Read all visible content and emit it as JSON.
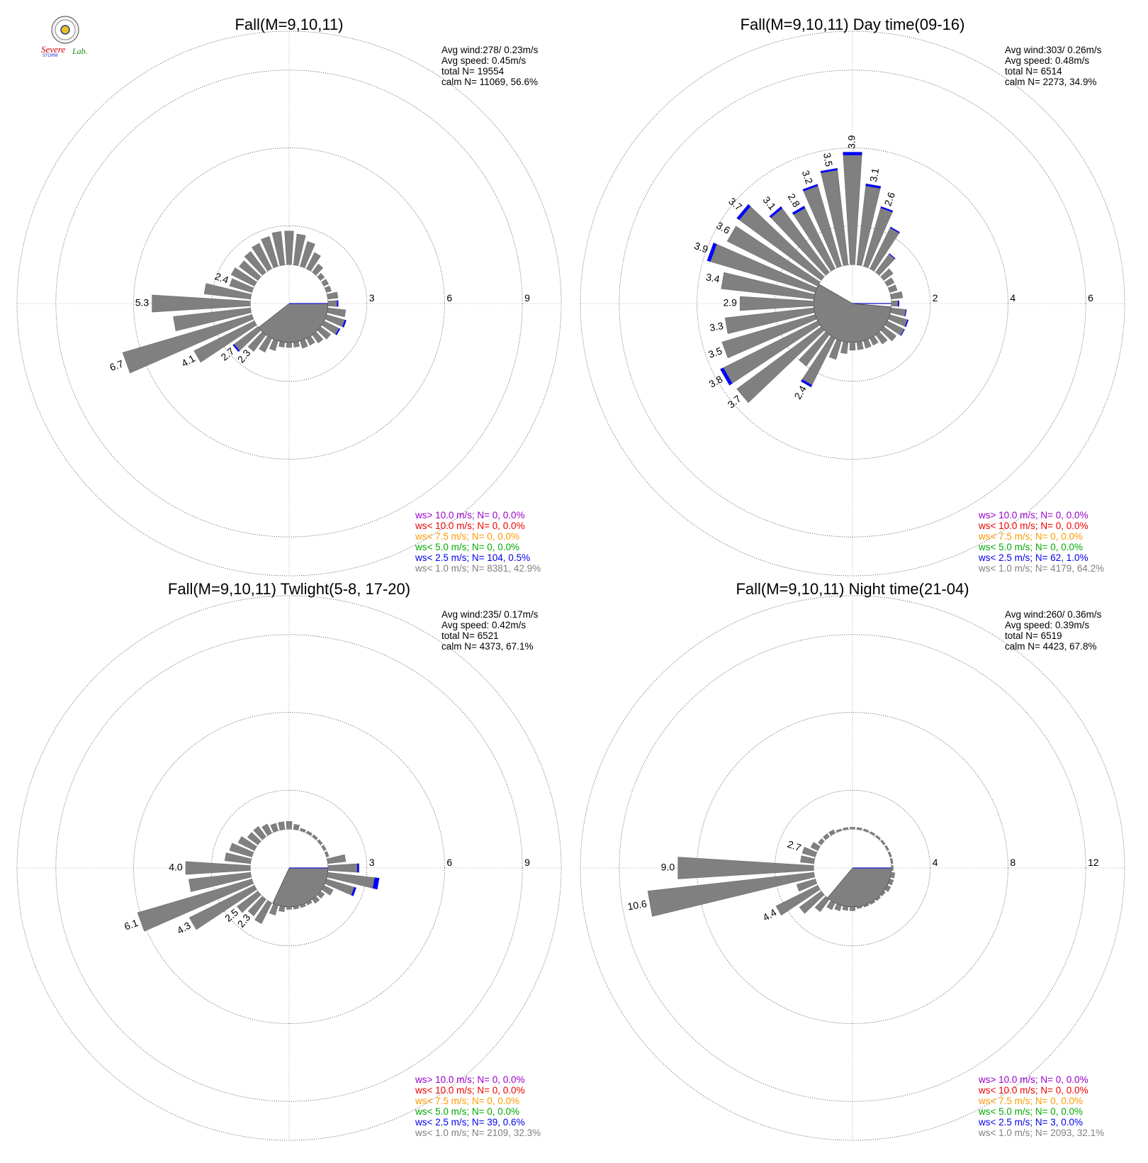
{
  "logo": {
    "text": "SevereStorm Lab.",
    "colors": {
      "severe": "#d40000",
      "storm": "#1a33cc",
      "lab": "#1a8a1a"
    }
  },
  "colors": {
    "bar": "#808080",
    "blue_tip": "#0000ff"
  },
  "chart_data": [
    {
      "type": "polar-bar",
      "title": "Fall(M=9,10,11)",
      "info": [
        "Avg wind:278/ 0.23m/s",
        "Avg speed: 0.45m/s",
        "total N=       19554",
        "calm N=  11069,  56.6%"
      ],
      "ring_labels": [
        "3",
        "6",
        "9"
      ],
      "rmax": 10.5,
      "calm_r": 1.5,
      "calm_sector": [
        90,
        232
      ],
      "bar_labels": [
        {
          "dir": 270,
          "text": "5.3"
        },
        {
          "dir": 250,
          "text": "6.7"
        },
        {
          "dir": 240,
          "text": "4.1"
        },
        {
          "dir": 230,
          "text": "2.7"
        },
        {
          "dir": 220,
          "text": "2.3"
        },
        {
          "dir": 290,
          "text": "2.4"
        }
      ],
      "bars": [
        {
          "dir": 0,
          "r": 2.8
        },
        {
          "dir": 10,
          "r": 2.7
        },
        {
          "dir": 20,
          "r": 2.5
        },
        {
          "dir": 30,
          "r": 2.2
        },
        {
          "dir": 40,
          "r": 1.9
        },
        {
          "dir": 50,
          "r": 1.7
        },
        {
          "dir": 60,
          "r": 1.7
        },
        {
          "dir": 70,
          "r": 1.7
        },
        {
          "dir": 80,
          "r": 1.9
        },
        {
          "dir": 90,
          "r": 1.9,
          "blue": 0.05
        },
        {
          "dir": 100,
          "r": 2.2
        },
        {
          "dir": 110,
          "r": 2.3,
          "blue": 0.06
        },
        {
          "dir": 120,
          "r": 2.2,
          "blue": 0.05
        },
        {
          "dir": 130,
          "r": 2.0
        },
        {
          "dir": 140,
          "r": 1.9
        },
        {
          "dir": 150,
          "r": 1.8
        },
        {
          "dir": 160,
          "r": 1.8
        },
        {
          "dir": 170,
          "r": 1.7
        },
        {
          "dir": 180,
          "r": 1.7
        },
        {
          "dir": 190,
          "r": 1.7
        },
        {
          "dir": 200,
          "r": 1.9
        },
        {
          "dir": 210,
          "r": 2.1
        },
        {
          "dir": 220,
          "r": 2.3
        },
        {
          "dir": 230,
          "r": 2.7,
          "blue": 0.06
        },
        {
          "dir": 240,
          "r": 4.1
        },
        {
          "dir": 250,
          "r": 6.7
        },
        {
          "dir": 260,
          "r": 4.5
        },
        {
          "dir": 270,
          "r": 5.3
        },
        {
          "dir": 280,
          "r": 3.3
        },
        {
          "dir": 290,
          "r": 2.4
        },
        {
          "dir": 300,
          "r": 2.5
        },
        {
          "dir": 310,
          "r": 2.4
        },
        {
          "dir": 320,
          "r": 2.5
        },
        {
          "dir": 330,
          "r": 2.6
        },
        {
          "dir": 340,
          "r": 2.7
        },
        {
          "dir": 350,
          "r": 2.8
        }
      ],
      "legend": [
        {
          "text": "ws> 10.0 m/s; N=      0,  0.0%",
          "color": "#9900cc"
        },
        {
          "text": "ws< 10.0 m/s; N=      0,  0.0%",
          "color": "#ee0000"
        },
        {
          "text": "ws<  7.5 m/s; N=      0,  0.0%",
          "color": "#ff9900"
        },
        {
          "text": "ws<  5.0 m/s; N=      0,  0.0%",
          "color": "#00aa00"
        },
        {
          "text": "ws<  2.5 m/s; N=   104,  0.5%",
          "color": "#0000ee"
        },
        {
          "text": "ws<  1.0 m/s; N=  8381, 42.9%",
          "color": "#808080"
        }
      ]
    },
    {
      "type": "polar-bar",
      "title": "Fall(M=9,10,11) Day time(09-16)",
      "info": [
        "Avg wind:303/ 0.26m/s",
        "Avg speed: 0.48m/s",
        "total N=        6514",
        "calm N=   2273,  34.9%"
      ],
      "ring_labels": [
        "2",
        "4",
        "6"
      ],
      "rmax": 7.0,
      "calm_r": 1.0,
      "calm_sector": [
        95,
        300
      ],
      "bar_labels": [
        {
          "dir": 0,
          "text": "3.9"
        },
        {
          "dir": 10,
          "text": "3.1"
        },
        {
          "dir": 20,
          "text": "2.6"
        },
        {
          "dir": 350,
          "text": "3.5"
        },
        {
          "dir": 340,
          "text": "3.2"
        },
        {
          "dir": 330,
          "text": "2.8"
        },
        {
          "dir": 320,
          "text": "3.1"
        },
        {
          "dir": 310,
          "text": "3.7"
        },
        {
          "dir": 300,
          "text": "3.6"
        },
        {
          "dir": 290,
          "text": "3.9"
        },
        {
          "dir": 280,
          "text": "3.4"
        },
        {
          "dir": 270,
          "text": "2.9"
        },
        {
          "dir": 260,
          "text": "3.3"
        },
        {
          "dir": 250,
          "text": "3.5"
        },
        {
          "dir": 240,
          "text": "3.8"
        },
        {
          "dir": 230,
          "text": "3.7"
        },
        {
          "dir": 210,
          "text": "2.4"
        }
      ],
      "bars": [
        {
          "dir": 0,
          "r": 3.9,
          "blue": 0.08
        },
        {
          "dir": 10,
          "r": 3.1,
          "blue": 0.06
        },
        {
          "dir": 20,
          "r": 2.6,
          "blue": 0.04
        },
        {
          "dir": 30,
          "r": 2.2,
          "blue": 0.03
        },
        {
          "dir": 40,
          "r": 1.6,
          "blue": 0.02
        },
        {
          "dir": 50,
          "r": 1.3
        },
        {
          "dir": 60,
          "r": 1.2
        },
        {
          "dir": 70,
          "r": 1.2
        },
        {
          "dir": 80,
          "r": 1.3
        },
        {
          "dir": 90,
          "r": 1.2,
          "blue": 0.03
        },
        {
          "dir": 100,
          "r": 1.4,
          "blue": 0.02
        },
        {
          "dir": 110,
          "r": 1.5,
          "blue": 0.03
        },
        {
          "dir": 120,
          "r": 1.5,
          "blue": 0.02
        },
        {
          "dir": 130,
          "r": 1.4
        },
        {
          "dir": 140,
          "r": 1.3
        },
        {
          "dir": 150,
          "r": 1.2
        },
        {
          "dir": 160,
          "r": 1.2
        },
        {
          "dir": 170,
          "r": 1.2
        },
        {
          "dir": 180,
          "r": 1.2
        },
        {
          "dir": 190,
          "r": 1.3
        },
        {
          "dir": 200,
          "r": 1.5
        },
        {
          "dir": 210,
          "r": 2.4,
          "blue": 0.06
        },
        {
          "dir": 220,
          "r": 2.0
        },
        {
          "dir": 230,
          "r": 3.7
        },
        {
          "dir": 240,
          "r": 3.8,
          "blue": 0.09
        },
        {
          "dir": 250,
          "r": 3.5
        },
        {
          "dir": 260,
          "r": 3.3
        },
        {
          "dir": 270,
          "r": 2.9
        },
        {
          "dir": 280,
          "r": 3.4
        },
        {
          "dir": 290,
          "r": 3.9,
          "blue": 0.09
        },
        {
          "dir": 300,
          "r": 3.6
        },
        {
          "dir": 310,
          "r": 3.7,
          "blue": 0.08
        },
        {
          "dir": 320,
          "r": 3.1,
          "blue": 0.06
        },
        {
          "dir": 330,
          "r": 2.8,
          "blue": 0.06
        },
        {
          "dir": 340,
          "r": 3.2,
          "blue": 0.05
        },
        {
          "dir": 350,
          "r": 3.5,
          "blue": 0.05
        }
      ],
      "legend": [
        {
          "text": "ws> 10.0 m/s; N=      0,  0.0%",
          "color": "#9900cc"
        },
        {
          "text": "ws< 10.0 m/s; N=      0,  0.0%",
          "color": "#ee0000"
        },
        {
          "text": "ws<  7.5 m/s; N=      0,  0.0%",
          "color": "#ff9900"
        },
        {
          "text": "ws<  5.0 m/s; N=      0,  0.0%",
          "color": "#00aa00"
        },
        {
          "text": "ws<  2.5 m/s; N=     62,  1.0%",
          "color": "#0000ee"
        },
        {
          "text": "ws<  1.0 m/s; N=  4179, 64.2%",
          "color": "#808080"
        }
      ]
    },
    {
      "type": "polar-bar",
      "title": "Fall(M=9,10,11) Twlight(5-8, 17-20)",
      "info": [
        "Avg wind:235/ 0.17m/s",
        "Avg speed: 0.42m/s",
        "total N=        6521",
        "calm N=   4373,  67.1%"
      ],
      "ring_labels": [
        "3",
        "6",
        "9"
      ],
      "rmax": 10.5,
      "calm_r": 1.5,
      "calm_sector": [
        90,
        205
      ],
      "bar_labels": [
        {
          "dir": 270,
          "text": "4.0"
        },
        {
          "dir": 250,
          "text": "6.1"
        },
        {
          "dir": 240,
          "text": "4.3"
        },
        {
          "dir": 230,
          "text": "2.5"
        },
        {
          "dir": 220,
          "text": "2.3"
        }
      ],
      "bars": [
        {
          "dir": 0,
          "r": 1.8
        },
        {
          "dir": 10,
          "r": 1.7
        },
        {
          "dir": 20,
          "r": 1.6
        },
        {
          "dir": 30,
          "r": 1.6
        },
        {
          "dir": 40,
          "r": 1.6
        },
        {
          "dir": 50,
          "r": 1.6
        },
        {
          "dir": 60,
          "r": 1.6
        },
        {
          "dir": 70,
          "r": 1.6
        },
        {
          "dir": 80,
          "r": 2.2
        },
        {
          "dir": 90,
          "r": 2.7,
          "blue": 0.07
        },
        {
          "dir": 100,
          "r": 3.5,
          "blue": 0.18
        },
        {
          "dir": 110,
          "r": 2.7,
          "blue": 0.08
        },
        {
          "dir": 120,
          "r": 1.9
        },
        {
          "dir": 130,
          "r": 1.7
        },
        {
          "dir": 140,
          "r": 1.7
        },
        {
          "dir": 150,
          "r": 1.6
        },
        {
          "dir": 160,
          "r": 1.6
        },
        {
          "dir": 170,
          "r": 1.6
        },
        {
          "dir": 180,
          "r": 1.6
        },
        {
          "dir": 190,
          "r": 1.7
        },
        {
          "dir": 200,
          "r": 1.9
        },
        {
          "dir": 210,
          "r": 2.4
        },
        {
          "dir": 220,
          "r": 2.3
        },
        {
          "dir": 230,
          "r": 2.5
        },
        {
          "dir": 240,
          "r": 4.3
        },
        {
          "dir": 250,
          "r": 6.1
        },
        {
          "dir": 260,
          "r": 3.9
        },
        {
          "dir": 270,
          "r": 4.0
        },
        {
          "dir": 280,
          "r": 2.5
        },
        {
          "dir": 290,
          "r": 2.4
        },
        {
          "dir": 300,
          "r": 2.2
        },
        {
          "dir": 310,
          "r": 2.0
        },
        {
          "dir": 320,
          "r": 2.0
        },
        {
          "dir": 330,
          "r": 1.9
        },
        {
          "dir": 340,
          "r": 1.8
        },
        {
          "dir": 350,
          "r": 1.8
        }
      ],
      "legend": [
        {
          "text": "ws> 10.0 m/s; N=      0,  0.0%",
          "color": "#9900cc"
        },
        {
          "text": "ws< 10.0 m/s; N=      0,  0.0%",
          "color": "#ee0000"
        },
        {
          "text": "ws<  7.5 m/s; N=      0,  0.0%",
          "color": "#ff9900"
        },
        {
          "text": "ws<  5.0 m/s; N=      0,  0.0%",
          "color": "#00aa00"
        },
        {
          "text": "ws<  2.5 m/s; N=     39,  0.6%",
          "color": "#0000ee"
        },
        {
          "text": "ws<  1.0 m/s; N=  2109, 32.3%",
          "color": "#808080"
        }
      ]
    },
    {
      "type": "polar-bar",
      "title": "Fall(M=9,10,11) Night time(21-04)",
      "info": [
        "Avg wind:260/ 0.36m/s",
        "Avg speed: 0.39m/s",
        "total N=        6519",
        "calm N=   4423,  67.8%"
      ],
      "ring_labels": [
        "4",
        "8",
        "12"
      ],
      "rmax": 14.0,
      "calm_r": 2.0,
      "calm_sector": [
        90,
        220
      ],
      "bar_labels": [
        {
          "dir": 270,
          "text": "9.0"
        },
        {
          "dir": 260,
          "text": "10.6"
        },
        {
          "dir": 240,
          "text": "4.4"
        },
        {
          "dir": 290,
          "text": "2.7"
        }
      ],
      "bars": [
        {
          "dir": 0,
          "r": 2.1
        },
        {
          "dir": 10,
          "r": 2.1
        },
        {
          "dir": 20,
          "r": 2.1
        },
        {
          "dir": 30,
          "r": 2.1
        },
        {
          "dir": 40,
          "r": 2.1
        },
        {
          "dir": 50,
          "r": 2.1
        },
        {
          "dir": 60,
          "r": 2.1
        },
        {
          "dir": 70,
          "r": 2.1
        },
        {
          "dir": 80,
          "r": 2.1
        },
        {
          "dir": 90,
          "r": 2.1
        },
        {
          "dir": 100,
          "r": 2.2
        },
        {
          "dir": 110,
          "r": 2.2
        },
        {
          "dir": 120,
          "r": 2.2
        },
        {
          "dir": 130,
          "r": 2.1
        },
        {
          "dir": 140,
          "r": 2.1
        },
        {
          "dir": 150,
          "r": 2.1
        },
        {
          "dir": 160,
          "r": 2.1
        },
        {
          "dir": 170,
          "r": 2.1
        },
        {
          "dir": 180,
          "r": 2.2
        },
        {
          "dir": 190,
          "r": 2.2
        },
        {
          "dir": 200,
          "r": 2.3
        },
        {
          "dir": 210,
          "r": 2.4
        },
        {
          "dir": 220,
          "r": 2.8
        },
        {
          "dir": 230,
          "r": 3.4
        },
        {
          "dir": 240,
          "r": 4.4
        },
        {
          "dir": 250,
          "r": 3.0
        },
        {
          "dir": 260,
          "r": 10.6
        },
        {
          "dir": 270,
          "r": 9.0
        },
        {
          "dir": 280,
          "r": 2.7
        },
        {
          "dir": 290,
          "r": 2.7
        },
        {
          "dir": 300,
          "r": 2.4
        },
        {
          "dir": 310,
          "r": 2.2
        },
        {
          "dir": 320,
          "r": 2.2
        },
        {
          "dir": 330,
          "r": 2.2
        },
        {
          "dir": 340,
          "r": 2.1
        },
        {
          "dir": 350,
          "r": 2.1
        }
      ],
      "legend": [
        {
          "text": "ws> 10.0 m/s; N=      0,  0.0%",
          "color": "#9900cc"
        },
        {
          "text": "ws< 10.0 m/s; N=      0,  0.0%",
          "color": "#ee0000"
        },
        {
          "text": "ws<  7.5 m/s; N=      0,  0.0%",
          "color": "#ff9900"
        },
        {
          "text": "ws<  5.0 m/s; N=      0,  0.0%",
          "color": "#00aa00"
        },
        {
          "text": "ws<  2.5 m/s; N=       3,  0.0%",
          "color": "#0000ee"
        },
        {
          "text": "ws<  1.0 m/s; N=  2093, 32.1%",
          "color": "#808080"
        }
      ]
    }
  ]
}
